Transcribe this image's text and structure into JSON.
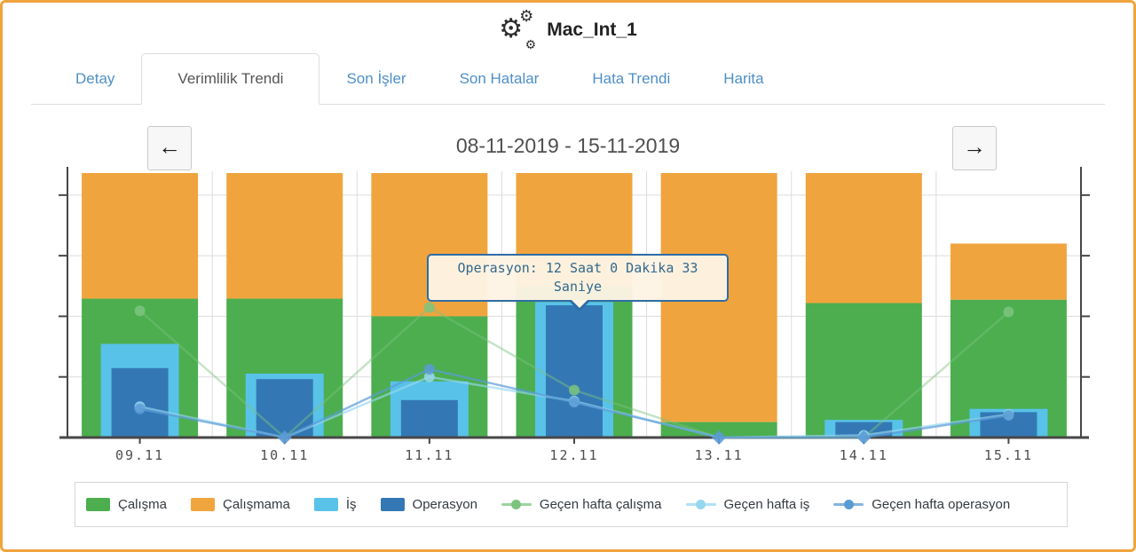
{
  "header": {
    "title": "Mac_Int_1",
    "gear_glyph": "⚙"
  },
  "tabs": [
    {
      "label": "Detay",
      "active": false
    },
    {
      "label": "Verimlilik Trendi",
      "active": true
    },
    {
      "label": "Son İşler",
      "active": false
    },
    {
      "label": "Son Hatalar",
      "active": false
    },
    {
      "label": "Hata Trendi",
      "active": false
    },
    {
      "label": "Harita",
      "active": false
    }
  ],
  "period": {
    "date_range": "08-11-2019 - 15-11-2019",
    "prev_glyph": "←",
    "next_glyph": "→"
  },
  "tooltip": {
    "text": "Operasyon: 12 Saat 0 Dakika 33 Saniye",
    "anchor_category": "12.11",
    "anchor_series": "Operasyon"
  },
  "colors": {
    "frame_orange": "#f0a43e",
    "green": "#4cae4f",
    "orange": "#f0a43e",
    "lightblue": "#58c2e8",
    "darkblue": "#3378b5",
    "line_green": "#7cc47e",
    "line_lightblue": "#96d7f0",
    "line_blue": "#5b9bd5",
    "axis": "#474747",
    "grid": "#dcdcdc",
    "tab_link": "#4e8fc7"
  },
  "chart_data": {
    "type": "bar",
    "subtype": "stacked bars (this week, hours) + line series (last week, hours)",
    "unit": "hours",
    "categories": [
      "09.11",
      "10.11",
      "11.11",
      "12.11",
      "13.11",
      "14.11",
      "15.11"
    ],
    "y_axis": {
      "min": 0,
      "max": 24,
      "tick_labels_visible": false,
      "grid": true
    },
    "bar_series": [
      {
        "key": "calisma",
        "label": "Çalışma",
        "color": "green",
        "stack": "day",
        "values": [
          12.6,
          12.6,
          11.0,
          13.7,
          1.4,
          12.2,
          12.5
        ]
      },
      {
        "key": "calismama",
        "label": "Çalışmama",
        "color": "orange",
        "stack": "day",
        "values": [
          11.4,
          11.4,
          13.0,
          10.3,
          22.6,
          11.8,
          5.1
        ]
      },
      {
        "key": "is",
        "label": "İş",
        "color": "lightblue",
        "overlay": true,
        "values": [
          8.5,
          5.8,
          5.1,
          12.3,
          0,
          1.6,
          2.6
        ]
      },
      {
        "key": "operasyon",
        "label": "Operasyon",
        "color": "darkblue",
        "overlay": true,
        "values": [
          6.3,
          5.3,
          3.4,
          12.0,
          0,
          1.4,
          2.3
        ]
      }
    ],
    "line_series": [
      {
        "key": "gh_calisma",
        "label": "Geçen hafta çalışma",
        "color": "line_green",
        "opacity": 0.45,
        "values": [
          11.5,
          0,
          11.8,
          4.3,
          0,
          0,
          11.4
        ]
      },
      {
        "key": "gh_is",
        "label": "Geçen hafta iş",
        "color": "line_lightblue",
        "opacity": 0.65,
        "values": [
          2.8,
          0,
          5.5,
          3.3,
          0,
          0.2,
          2.1
        ]
      },
      {
        "key": "gh_operasyon",
        "label": "Geçen hafta operasyon",
        "color": "line_blue",
        "opacity": 0.7,
        "values": [
          2.6,
          0,
          6.2,
          3.2,
          0,
          0,
          2.0
        ]
      }
    ],
    "tooltip_value": "12 Saat 0 Dakika 33 Saniye",
    "legend": [
      {
        "label": "Çalışma",
        "swatch": "box",
        "color": "green"
      },
      {
        "label": "Çalışmama",
        "swatch": "box",
        "color": "orange"
      },
      {
        "label": "İş",
        "swatch": "box",
        "color": "lightblue"
      },
      {
        "label": "Operasyon",
        "swatch": "box",
        "color": "darkblue"
      },
      {
        "label": "Geçen hafta çalışma",
        "swatch": "line",
        "color": "line_green"
      },
      {
        "label": "Geçen hafta iş",
        "swatch": "line",
        "color": "line_lightblue"
      },
      {
        "label": "Geçen hafta operasyon",
        "swatch": "line",
        "color": "line_blue"
      }
    ],
    "legend_position": "bottom"
  }
}
